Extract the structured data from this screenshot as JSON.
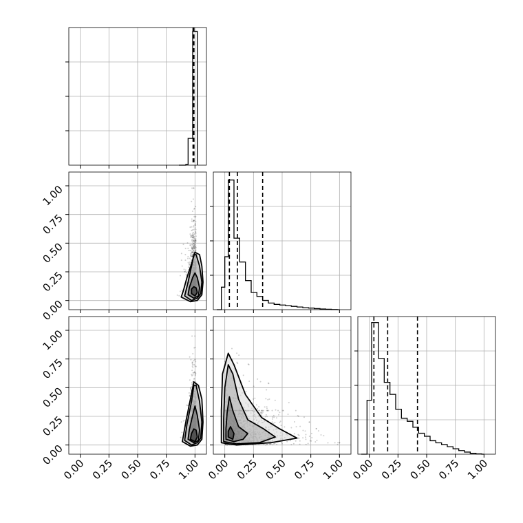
{
  "chart_data": {
    "type": "corner",
    "grid": true,
    "colors": {
      "line": "#000000",
      "grid": "#b0b0b0",
      "frame": "#000000",
      "points": "#3a3a3a"
    },
    "tick_labels": [
      "0.00",
      "0.25",
      "0.50",
      "0.75",
      "1.00"
    ],
    "parameters": [
      {
        "xlim": [
          -0.1,
          1.1
        ],
        "histogram": {
          "type": "step",
          "bin_edges": [
            0.86,
            0.92,
            0.94,
            0.96,
            0.98,
            1.0,
            1.02
          ],
          "counts": [
            0.0,
            0.02,
            0.7,
            0.7,
            3.5,
            3.5
          ],
          "ylim": [
            0,
            3.6
          ],
          "quantiles": [
            0.983,
            0.987,
            0.991
          ]
        }
      },
      {
        "xlim": [
          -0.1,
          1.1
        ],
        "ylim": [
          -0.08,
          1.12
        ],
        "histogram": {
          "type": "step",
          "bin_edges": [
            -0.07,
            -0.03,
            0.0,
            0.03,
            0.08,
            0.13,
            0.18,
            0.23,
            0.28,
            0.33,
            0.38,
            0.43,
            0.48,
            0.53,
            0.58,
            0.63,
            0.68,
            0.73,
            0.78,
            0.83,
            0.88,
            0.93,
            0.98,
            1.0
          ],
          "counts": [
            0,
            17,
            40,
            98,
            54,
            36,
            22,
            13,
            10,
            7,
            5,
            4,
            3.5,
            3,
            2.5,
            2,
            1.5,
            1.2,
            0.8,
            0.5,
            0.3,
            0.1,
            0
          ],
          "ylim": [
            0,
            104
          ],
          "quantiles": [
            0.04,
            0.11,
            0.33
          ]
        }
      },
      {
        "xlim": [
          -0.1,
          1.1
        ],
        "ylim": [
          -0.08,
          1.12
        ],
        "histogram": {
          "type": "step",
          "bin_edges": [
            -0.07,
            -0.02,
            0.02,
            0.08,
            0.13,
            0.18,
            0.23,
            0.28,
            0.33,
            0.38,
            0.43,
            0.48,
            0.53,
            0.58,
            0.63,
            0.68,
            0.73,
            0.78,
            0.83,
            0.88,
            0.93,
            0.98,
            1.0
          ],
          "counts": [
            0,
            18,
            44,
            32,
            24,
            20,
            15,
            12,
            11,
            9,
            7,
            6,
            4.5,
            3.8,
            3.2,
            2.5,
            1.8,
            1.2,
            0.7,
            0.3,
            0.1,
            0
          ],
          "ylim": [
            0,
            46
          ],
          "quantiles": [
            0.04,
            0.16,
            0.42
          ]
        }
      }
    ],
    "pairs": [
      {
        "x_param": 0,
        "y_param": 1,
        "scatter_density": {
          "x_center": 0.99,
          "x_spread": 0.03,
          "y_mode": 0.08,
          "y_max": 0.98
        },
        "contours": [
          [
            [
              0.97,
              0.06
            ],
            [
              1.0,
              0.04
            ],
            [
              1.02,
              0.07
            ],
            [
              1.01,
              0.11
            ],
            [
              0.99,
              0.12
            ],
            [
              0.97,
              0.1
            ]
          ],
          [
            [
              0.94,
              0.05
            ],
            [
              0.99,
              0.02
            ],
            [
              1.03,
              0.04
            ],
            [
              1.04,
              0.11
            ],
            [
              1.02,
              0.2
            ],
            [
              1.0,
              0.24
            ],
            [
              0.98,
              0.2
            ],
            [
              0.95,
              0.11
            ]
          ],
          [
            [
              0.91,
              0.04
            ],
            [
              0.97,
              0.0
            ],
            [
              1.02,
              0.02
            ],
            [
              1.05,
              0.06
            ],
            [
              1.06,
              0.16
            ],
            [
              1.04,
              0.3
            ],
            [
              1.01,
              0.4
            ],
            [
              0.99,
              0.4
            ],
            [
              0.97,
              0.3
            ],
            [
              0.94,
              0.16
            ]
          ],
          [
            [
              0.88,
              0.03
            ],
            [
              0.96,
              -0.01
            ],
            [
              1.02,
              0.0
            ],
            [
              1.06,
              0.05
            ],
            [
              1.07,
              0.16
            ],
            [
              1.06,
              0.3
            ],
            [
              1.04,
              0.4
            ],
            [
              1.0,
              0.42
            ],
            [
              0.97,
              0.32
            ],
            [
              0.93,
              0.2
            ],
            [
              0.9,
              0.09
            ]
          ]
        ]
      },
      {
        "x_param": 0,
        "y_param": 2,
        "scatter_density": {
          "x_center": 0.99,
          "x_spread": 0.03,
          "y_mode": 0.06,
          "y_max": 0.95
        },
        "contours": [
          [
            [
              0.96,
              0.05
            ],
            [
              1.0,
              0.03
            ],
            [
              1.02,
              0.07
            ],
            [
              1.01,
              0.13
            ],
            [
              0.99,
              0.14
            ],
            [
              0.97,
              0.1
            ]
          ],
          [
            [
              0.94,
              0.05
            ],
            [
              0.99,
              0.02
            ],
            [
              1.03,
              0.04
            ],
            [
              1.04,
              0.13
            ],
            [
              1.02,
              0.26
            ],
            [
              1.0,
              0.34
            ],
            [
              0.98,
              0.26
            ],
            [
              0.95,
              0.13
            ]
          ],
          [
            [
              0.91,
              0.04
            ],
            [
              0.97,
              0.0
            ],
            [
              1.02,
              0.02
            ],
            [
              1.05,
              0.06
            ],
            [
              1.06,
              0.2
            ],
            [
              1.04,
              0.38
            ],
            [
              1.01,
              0.52
            ],
            [
              0.99,
              0.52
            ],
            [
              0.97,
              0.38
            ],
            [
              0.93,
              0.18
            ]
          ],
          [
            [
              0.89,
              0.03
            ],
            [
              0.96,
              -0.01
            ],
            [
              1.02,
              0.0
            ],
            [
              1.06,
              0.05
            ],
            [
              1.07,
              0.2
            ],
            [
              1.06,
              0.4
            ],
            [
              1.03,
              0.52
            ],
            [
              0.99,
              0.55
            ],
            [
              0.96,
              0.4
            ],
            [
              0.92,
              0.2
            ]
          ]
        ]
      },
      {
        "x_param": 1,
        "y_param": 2,
        "scatter_density": {
          "x_mode": 0.04,
          "y_mode": 0.06,
          "x_max": 1.0,
          "y_max": 0.95
        },
        "contours": [
          [
            [
              0.03,
              0.07
            ],
            [
              0.07,
              0.05
            ],
            [
              0.08,
              0.1
            ],
            [
              0.05,
              0.16
            ],
            [
              0.03,
              0.12
            ]
          ],
          [
            [
              0.01,
              0.05
            ],
            [
              0.08,
              0.03
            ],
            [
              0.16,
              0.05
            ],
            [
              0.2,
              0.1
            ],
            [
              0.12,
              0.16
            ],
            [
              0.07,
              0.3
            ],
            [
              0.04,
              0.42
            ],
            [
              0.02,
              0.28
            ],
            [
              0.01,
              0.14
            ]
          ],
          [
            [
              -0.01,
              0.03
            ],
            [
              0.1,
              0.01
            ],
            [
              0.3,
              0.02
            ],
            [
              0.44,
              0.07
            ],
            [
              0.34,
              0.14
            ],
            [
              0.2,
              0.22
            ],
            [
              0.12,
              0.4
            ],
            [
              0.07,
              0.62
            ],
            [
              0.03,
              0.7
            ],
            [
              0.0,
              0.5
            ],
            [
              -0.01,
              0.22
            ]
          ],
          [
            [
              -0.03,
              0.02
            ],
            [
              0.1,
              0.0
            ],
            [
              0.4,
              0.02
            ],
            [
              0.63,
              0.06
            ],
            [
              0.48,
              0.14
            ],
            [
              0.32,
              0.24
            ],
            [
              0.18,
              0.44
            ],
            [
              0.08,
              0.7
            ],
            [
              0.03,
              0.8
            ],
            [
              -0.02,
              0.62
            ],
            [
              -0.03,
              0.3
            ]
          ]
        ]
      }
    ]
  }
}
